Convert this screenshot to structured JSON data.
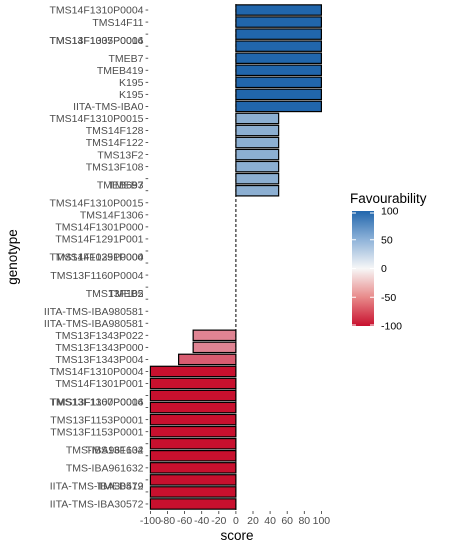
{
  "chart_data": {
    "type": "bar",
    "orientation": "horizontal",
    "xlabel": "score",
    "ylabel": "genotype",
    "xlim": [
      -105,
      105
    ],
    "xticks": [
      -100,
      -80,
      -60,
      -40,
      -20,
      0,
      20,
      40,
      60,
      80,
      100
    ],
    "legend": {
      "title": "Favourability",
      "ticks": [
        100,
        50,
        0,
        -50,
        -100
      ],
      "placement": "right",
      "colors": {
        "high": "#2166ac",
        "mid": "#f7f7f7",
        "low": "#c8102e"
      }
    },
    "categories": [
      "TMS14F1310P0004",
      "TMS14F11",
      "TMS14F1035P0004",
      "TMS13F1307P0016",
      "TMEB7",
      "TMEB419",
      "K195",
      "K195",
      "IITA-TMS-IBA0",
      "TMS14F1310P0015",
      "TMS14F128",
      "TMS14F122",
      "TMS13F2",
      "TMS13F108",
      "TMEB7",
      "TMEB693",
      "TMS14F1310P0015",
      "TMS14F1306",
      "TMS14F1301P000",
      "TMS14F1291P001",
      "TMS14F1291P000",
      "TMS14F1035P0004",
      "TMS13F1160P0004",
      "TMS13F105",
      "TMEB2",
      "IITA-TMS-IBA980581",
      "IITA-TMS-IBA980581",
      "TMS13F1343P022",
      "TMS13F1343P000",
      "TMS13F1343P004",
      "TMS14F1310P0004",
      "TMS14F1301P001",
      "TMS13F1307P0016",
      "TMS13F1160P0004",
      "TMS13F1153P0001",
      "TMS13F1153P0001",
      "TMS13F104",
      "TMS-IBA961632",
      "TMS-IBA961632",
      "TMEB419",
      "IITA-TMS-IBA30572",
      "IITA-TMS-IBA30572"
    ],
    "values": [
      100,
      100,
      100,
      100,
      100,
      100,
      100,
      100,
      100,
      50,
      50,
      50,
      50,
      50,
      50,
      50,
      0,
      0,
      0,
      0,
      0,
      0,
      0,
      0,
      0,
      0,
      0,
      -50,
      -50,
      -67,
      -100,
      -100,
      -100,
      -100,
      -100,
      -100,
      -100,
      -100,
      -100,
      -100,
      -100,
      -100
    ],
    "label_offsets": [
      0,
      0,
      0.5,
      -0.5,
      0,
      0,
      0,
      0,
      0,
      0,
      0,
      0,
      0,
      0,
      0.5,
      -0.5,
      0,
      0,
      0,
      0,
      0.5,
      -0.5,
      0,
      0.5,
      -0.5,
      0,
      0,
      0,
      0,
      0,
      0,
      0,
      0.5,
      -0.5,
      0,
      0,
      0.5,
      -0.5,
      0,
      0.5,
      -0.5,
      0
    ]
  }
}
